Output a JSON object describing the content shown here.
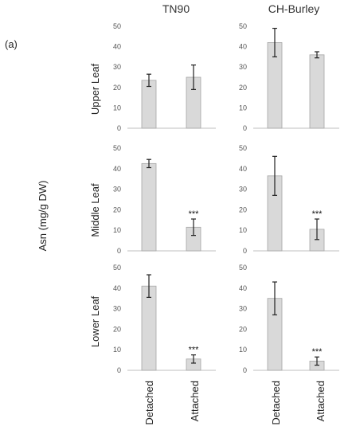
{
  "figure": {
    "panel_label": "(a)",
    "y_label": "Asn (mg/g DW)",
    "column_titles": [
      "TN90",
      "CH-Burley"
    ],
    "row_titles": [
      "Upper Leaf",
      "Middle Leaf",
      "Lower Leaf"
    ],
    "categories": [
      "Detached",
      "Attached"
    ],
    "colors": {
      "bar_fill": "#d9d9d9",
      "bar_stroke": "#a6a6a6",
      "axis": "#bfbfbf",
      "error": "#222222"
    }
  },
  "chart_data": [
    {
      "type": "bar",
      "title": "",
      "column": "TN90",
      "row": "Upper Leaf",
      "categories": [
        "Detached",
        "Attached"
      ],
      "values": [
        23.5,
        25
      ],
      "errors": [
        3,
        6
      ],
      "significance": [
        "",
        ""
      ],
      "ylim": [
        0,
        50
      ],
      "yticks": [
        0,
        10,
        20,
        30,
        40,
        50
      ]
    },
    {
      "type": "bar",
      "title": "",
      "column": "CH-Burley",
      "row": "Upper Leaf",
      "categories": [
        "Detached",
        "Attached"
      ],
      "values": [
        42,
        36
      ],
      "errors": [
        7,
        1.5
      ],
      "significance": [
        "",
        ""
      ],
      "ylim": [
        0,
        50
      ],
      "yticks": [
        0,
        10,
        20,
        30,
        40,
        50
      ]
    },
    {
      "type": "bar",
      "title": "",
      "column": "TN90",
      "row": "Middle Leaf",
      "categories": [
        "Detached",
        "Attached"
      ],
      "values": [
        42.5,
        11.5
      ],
      "errors": [
        2,
        4
      ],
      "significance": [
        "",
        "***"
      ],
      "ylim": [
        0,
        50
      ],
      "yticks": [
        0,
        10,
        20,
        30,
        40,
        50
      ]
    },
    {
      "type": "bar",
      "title": "",
      "column": "CH-Burley",
      "row": "Middle Leaf",
      "categories": [
        "Detached",
        "Attached"
      ],
      "values": [
        36.5,
        10.5
      ],
      "errors": [
        9.5,
        5
      ],
      "significance": [
        "",
        "***"
      ],
      "ylim": [
        0,
        50
      ],
      "yticks": [
        0,
        10,
        20,
        30,
        40,
        50
      ]
    },
    {
      "type": "bar",
      "title": "",
      "column": "TN90",
      "row": "Lower Leaf",
      "categories": [
        "Detached",
        "Attached"
      ],
      "values": [
        41,
        5.5
      ],
      "errors": [
        5.5,
        2
      ],
      "significance": [
        "",
        "***"
      ],
      "ylim": [
        0,
        50
      ],
      "yticks": [
        0,
        10,
        20,
        30,
        40,
        50
      ]
    },
    {
      "type": "bar",
      "title": "",
      "column": "CH-Burley",
      "row": "Lower Leaf",
      "categories": [
        "Detached",
        "Attached"
      ],
      "values": [
        35,
        4.5
      ],
      "errors": [
        8,
        2
      ],
      "significance": [
        "",
        "***"
      ],
      "ylim": [
        0,
        50
      ],
      "yticks": [
        0,
        10,
        20,
        30,
        40,
        50
      ]
    }
  ]
}
